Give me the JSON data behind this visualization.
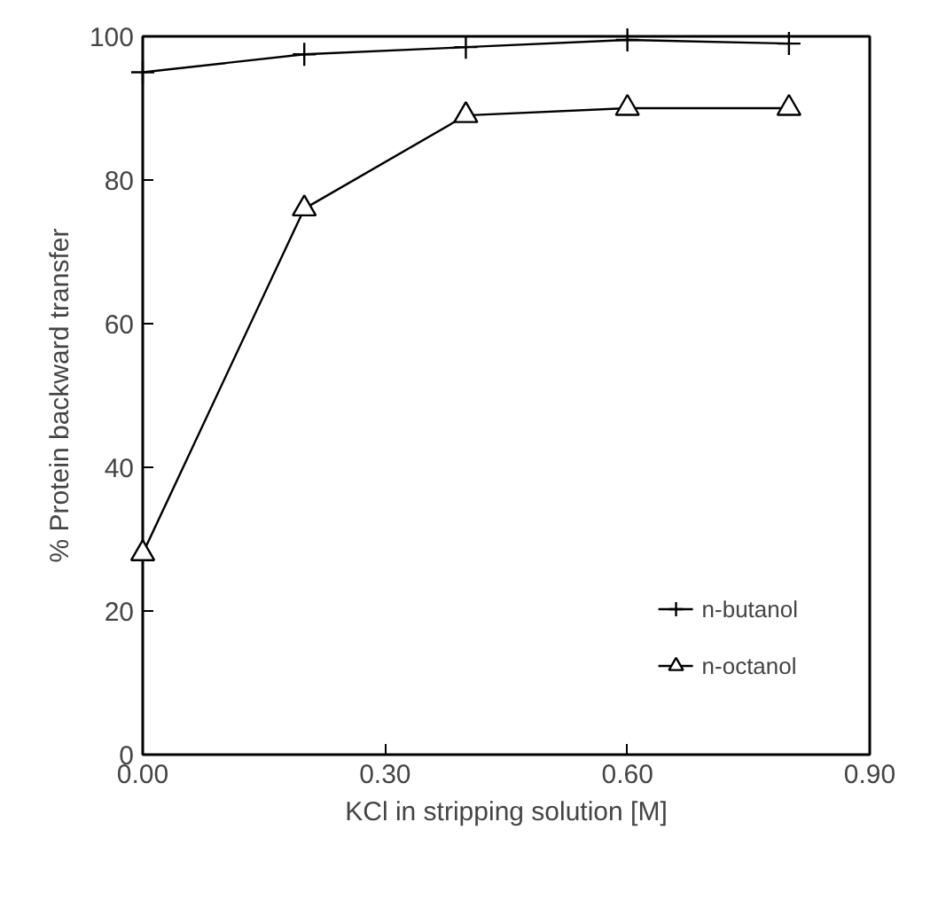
{
  "chart_data": {
    "type": "line",
    "xlabel": "KCl in stripping solution [M]",
    "ylabel": "% Protein backward transfer",
    "x": [
      0.0,
      0.2,
      0.4,
      0.6,
      0.8
    ],
    "series": [
      {
        "name": "n-butanol",
        "color": "#000000",
        "marker": "cross",
        "values": [
          95,
          97.5,
          98.5,
          99.5,
          99
        ]
      },
      {
        "name": "n-octanol",
        "color": "#000000",
        "marker": "triangle",
        "values": [
          28,
          76,
          89,
          90,
          90
        ]
      }
    ],
    "xlim": [
      0,
      0.9
    ],
    "xticks": [
      {
        "value": 0,
        "label": "0.00"
      },
      {
        "value": 0.3,
        "label": "0.30"
      },
      {
        "value": 0.6,
        "label": "0.60"
      },
      {
        "value": 0.9,
        "label": "0.90"
      }
    ],
    "ylim": [
      0,
      100
    ],
    "yticks": [
      0,
      20,
      40,
      60,
      80,
      100
    ],
    "grid": false,
    "legend": "bottom right",
    "line_style": "solid"
  }
}
